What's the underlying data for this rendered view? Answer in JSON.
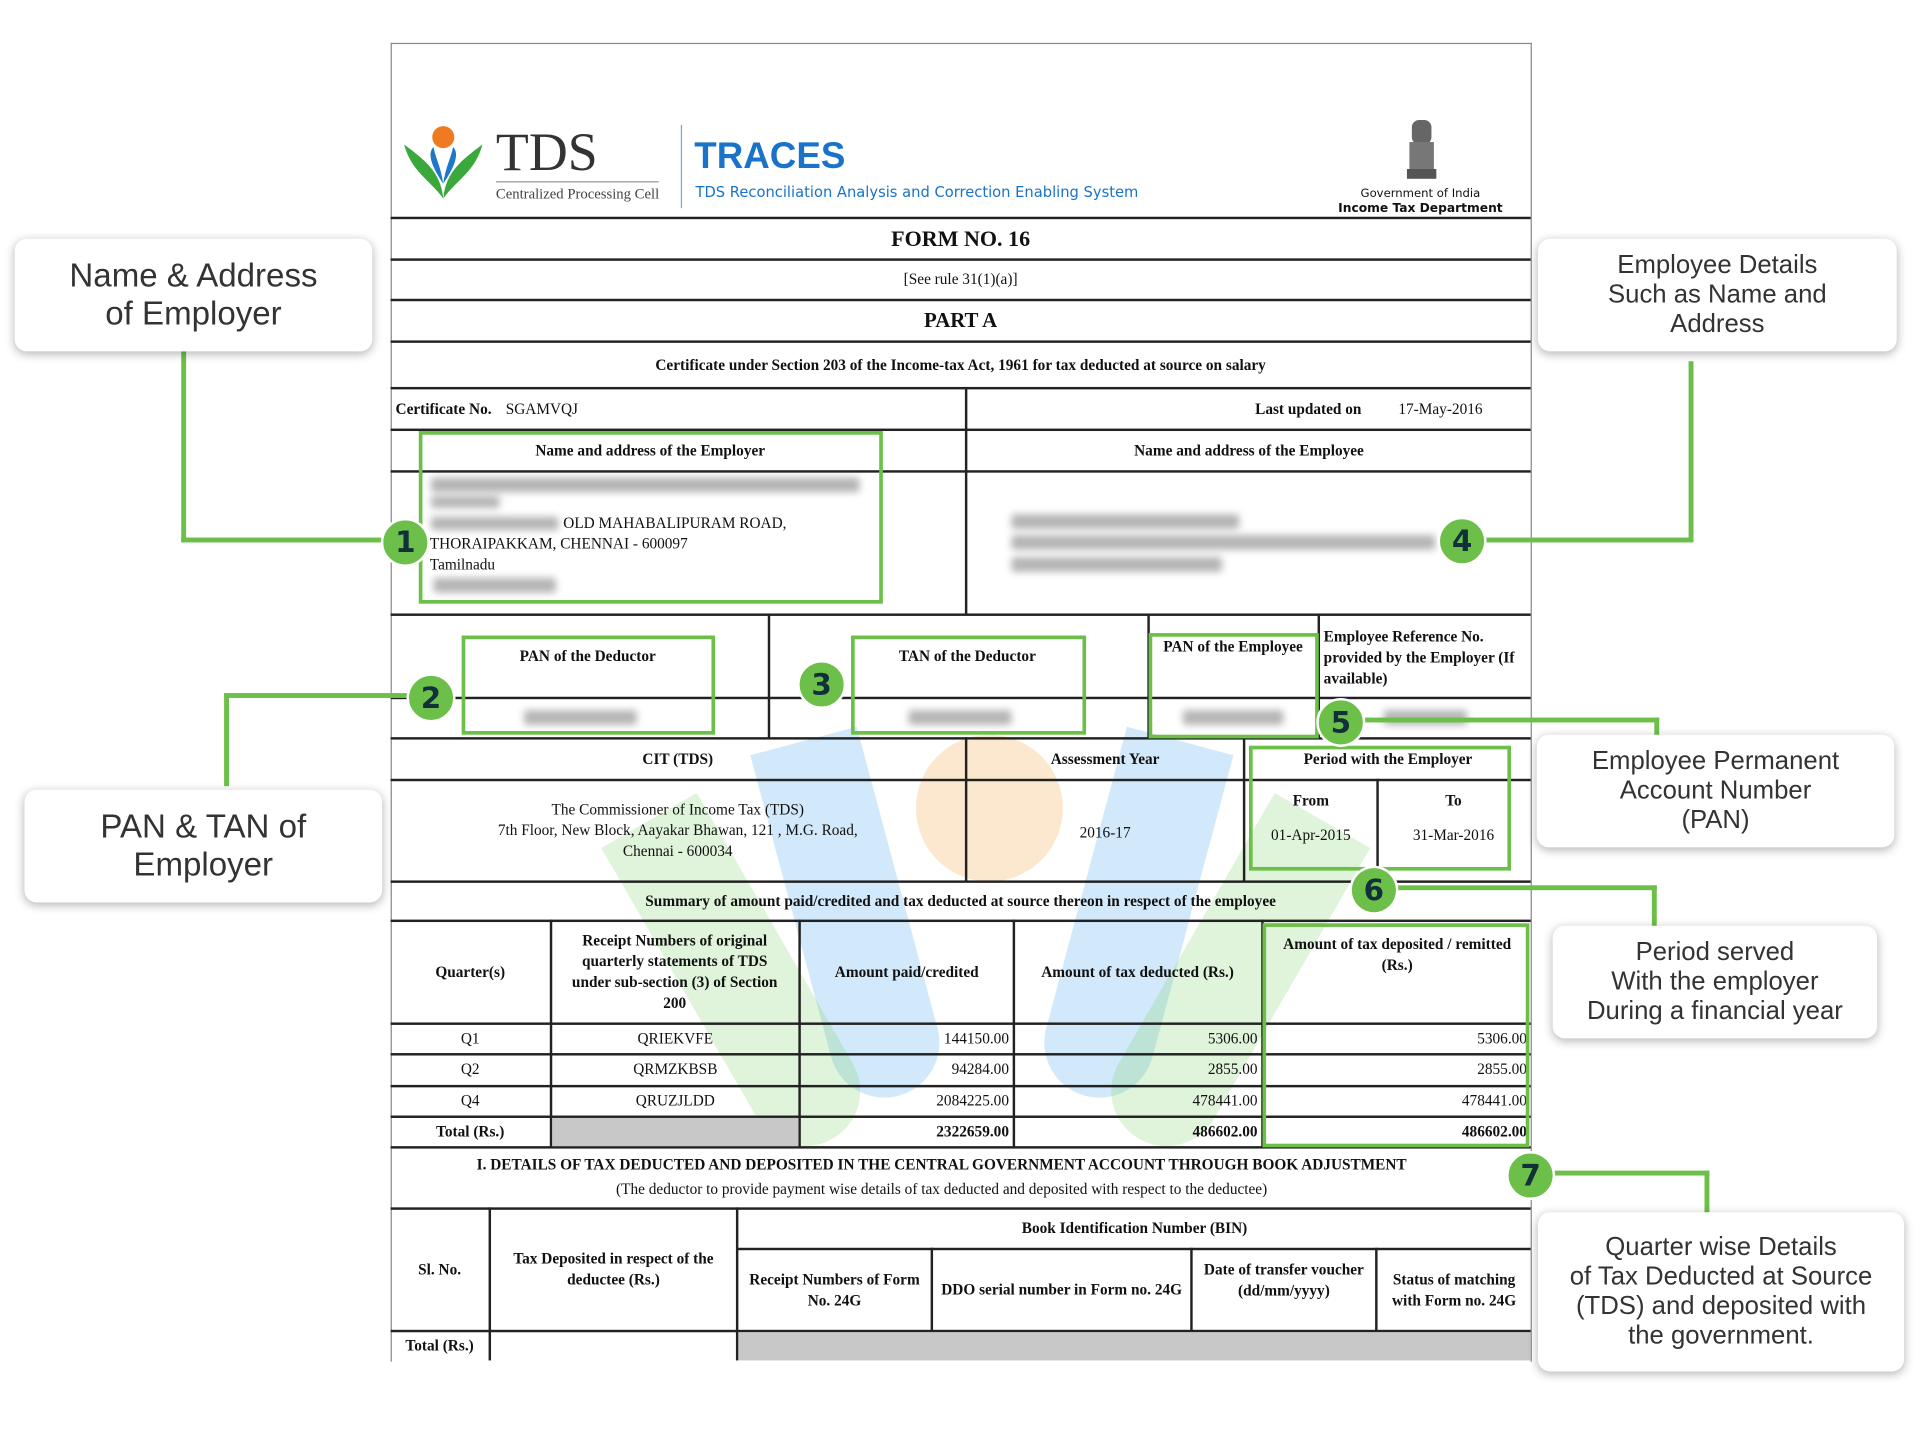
{
  "header": {
    "logo_text": "TDS",
    "logo_sub": "Centralized Processing Cell",
    "brand": "TRACES",
    "brand_sub": "TDS Reconciliation Analysis and Correction Enabling System",
    "gov_line1": "Government of India",
    "gov_line2": "Income Tax Department"
  },
  "form": {
    "title": "FORM NO. 16",
    "rule": "[See rule 31(1)(a)]",
    "part": "PART A",
    "certificate_heading": "Certificate under Section 203 of the Income-tax Act, 1961 for tax deducted at source on salary",
    "certificate_label": "Certificate No.",
    "certificate_no": "SGAMVQJ",
    "last_updated_label": "Last updated on",
    "last_updated": "17-May-2016",
    "employer_header": "Name and address of the Employer",
    "employee_header": "Name and address of the Employee",
    "employer_address_line1": "OLD MAHABALIPURAM ROAD,",
    "employer_address_line2": "THORAIPAKKAM, CHENNAI - 600097",
    "employer_address_line3": "Tamilnadu",
    "pan_deductor": "PAN of the Deductor",
    "tan_deductor": "TAN of the Deductor",
    "pan_employee": "PAN of the Employee",
    "employee_ref": "Employee Reference No. provided by the Employer (If available)",
    "cit_header": "CIT (TDS)",
    "cit_line1": "The Commissioner of Income Tax (TDS)",
    "cit_line2": "7th Floor, New Block, Aayakar Bhawan, 121 , M.G. Road,",
    "cit_line3": "Chennai - 600034",
    "ay_header": "Assessment Year",
    "ay": "2016-17",
    "period_header": "Period with the Employer",
    "from_label": "From",
    "to_label": "To",
    "from": "01-Apr-2015",
    "to": "31-Mar-2016",
    "summary_heading": "Summary of amount paid/credited and tax deducted at source thereon in respect of the employee",
    "summary_columns": [
      "Quarter(s)",
      "Receipt Numbers of original quarterly statements of TDS under sub-section (3) of Section 200",
      "Amount paid/credited",
      "Amount of tax deducted (Rs.)",
      "Amount of tax deposited / remitted (Rs.)"
    ],
    "summary_rows": [
      {
        "quarter": "Q1",
        "receipt": "QRIEKVFE",
        "paid": "144150.00",
        "deducted": "5306.00",
        "deposited": "5306.00"
      },
      {
        "quarter": "Q2",
        "receipt": "QRMZKBSB",
        "paid": "94284.00",
        "deducted": "2855.00",
        "deposited": "2855.00"
      },
      {
        "quarter": "Q4",
        "receipt": "QRUZJLDD",
        "paid": "2084225.00",
        "deducted": "478441.00",
        "deposited": "478441.00"
      }
    ],
    "summary_total": {
      "label": "Total (Rs.)",
      "paid": "2322659.00",
      "deducted": "486602.00",
      "deposited": "486602.00"
    },
    "details_heading": "I. DETAILS OF TAX DEDUCTED AND DEPOSITED IN THE CENTRAL GOVERNMENT ACCOUNT THROUGH BOOK ADJUSTMENT",
    "details_sub": "(The deductor to provide payment wise details of tax deducted and deposited with respect to the deductee)",
    "bin_columns": {
      "sl": "Sl. No.",
      "tax": "Tax Deposited in respect of the deductee (Rs.)",
      "bin": "Book Identification Number (BIN)",
      "receipt": "Receipt Numbers of Form No. 24G",
      "ddo": "DDO serial number in Form no. 24G",
      "date": "Date of transfer voucher (dd/mm/yyyy)",
      "status": "Status of matching with Form no. 24G"
    },
    "bin_total": "Total (Rs.)"
  },
  "callouts": [
    {
      "num": "1",
      "text": "Name & Address\nof Employer"
    },
    {
      "num": "2",
      "text": "PAN & TAN of\nEmployer"
    },
    {
      "num": "3",
      "text": ""
    },
    {
      "num": "4",
      "text": "Employee Details\nSuch as Name and\nAddress"
    },
    {
      "num": "5",
      "text": "Employee Permanent\nAccount Number\n(PAN)"
    },
    {
      "num": "6",
      "text": "Period served\nWith the employer\nDuring a financial year"
    },
    {
      "num": "7",
      "text": "Quarter wise Details\nof Tax Deducted at Source\n(TDS) and deposited with\nthe government."
    }
  ],
  "colors": {
    "highlight": "#6cc04a",
    "traces_blue": "#1a73c8"
  }
}
